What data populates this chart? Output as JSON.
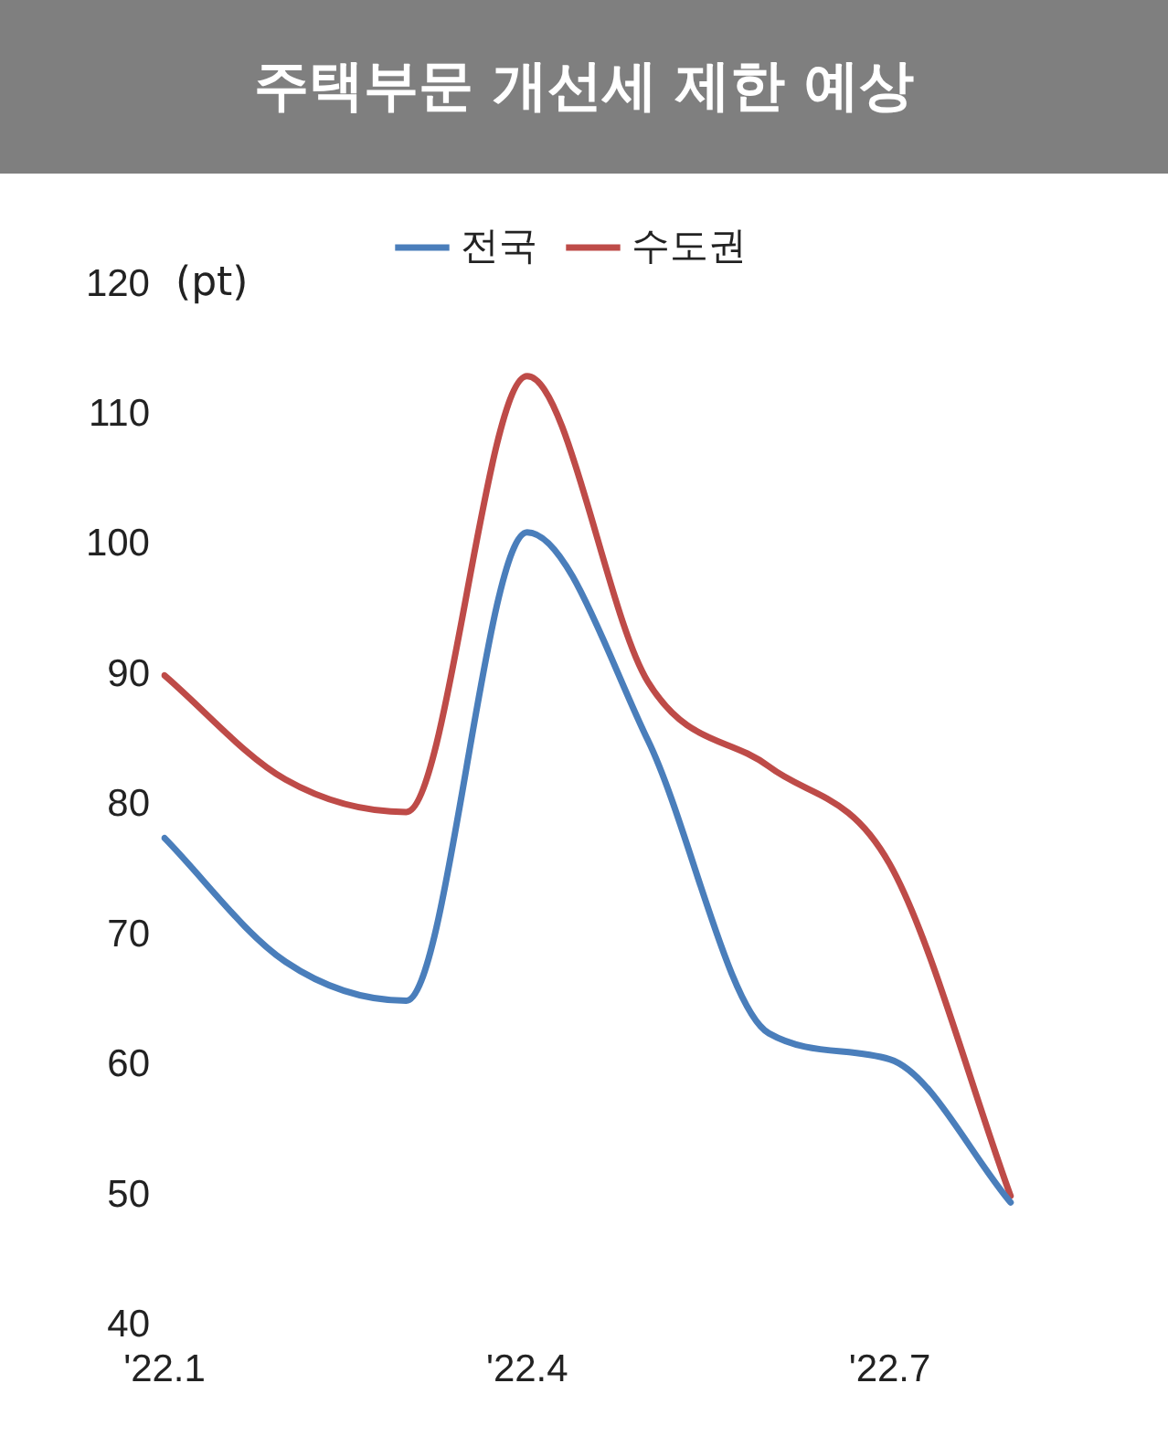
{
  "chart_data": {
    "type": "line",
    "title": "주택부문 개선세 제한 예상",
    "ylabel": "(pt)",
    "categories": [
      "'22.1",
      null,
      null,
      "'22.4",
      null,
      null,
      "'22.7",
      null,
      null
    ],
    "series": [
      {
        "name": "전국",
        "color": "#4a7ebb",
        "values": [
          77.5,
          68,
          65,
          101,
          85,
          62.5,
          60.5,
          49.5,
          null
        ]
      },
      {
        "name": "수도권",
        "color": "#be4b48",
        "values": [
          90,
          82,
          79.5,
          113,
          89.5,
          83,
          75.5,
          50,
          null
        ]
      }
    ],
    "ylim": [
      40,
      120
    ],
    "yticks": [
      40,
      50,
      60,
      70,
      80,
      90,
      100,
      110,
      120
    ],
    "grid": false,
    "legend": "top",
    "marker": "none",
    "line_style": "solid"
  }
}
